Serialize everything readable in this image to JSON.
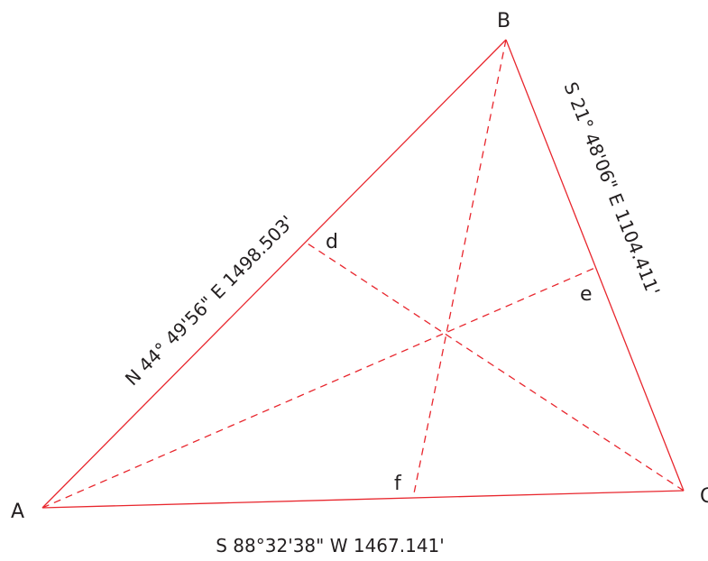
{
  "vertices": {
    "a": "A",
    "b": "B",
    "c": "C"
  },
  "midpoints": {
    "d": "d",
    "e": "e",
    "f": "f"
  },
  "sides": {
    "ab": "N 44° 49'56\"  E 1498.503'",
    "bc": "S 21° 48'06\"  E 1104.411'",
    "ca": "S 88°32'38\"  W 1467.141'"
  },
  "colors": {
    "line": "#e8262d",
    "text": "#231f20",
    "background": "#ffffff"
  }
}
